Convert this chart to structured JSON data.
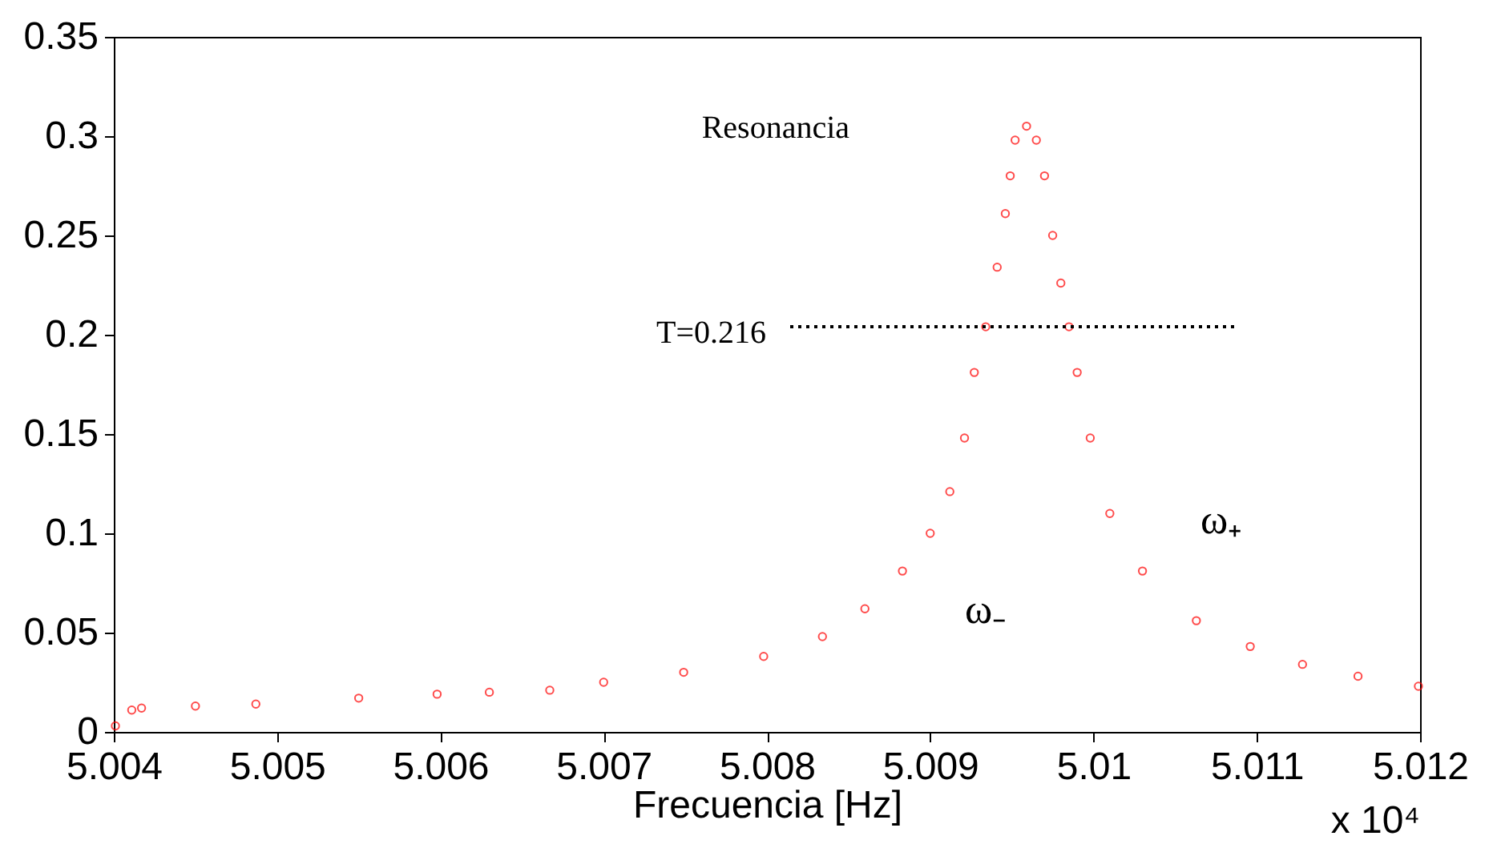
{
  "chart_data": {
    "type": "scatter",
    "xlabel": "Frecuencia [Hz]",
    "xlim": [
      5.004,
      5.012
    ],
    "xticks": [
      5.004,
      5.005,
      5.006,
      5.007,
      5.008,
      5.009,
      5.01,
      5.011,
      5.012
    ],
    "ylim": [
      0,
      0.35
    ],
    "yticks": [
      0,
      0.05,
      0.1,
      0.15,
      0.2,
      0.25,
      0.3,
      0.35
    ],
    "grid": false,
    "marker": "circle",
    "series": [
      {
        "color": "#ff0000",
        "x": [
          5.00401,
          5.00411,
          5.00417,
          5.0045,
          5.00487,
          5.0055,
          5.00598,
          5.0063,
          5.00667,
          5.007,
          5.00749,
          5.00798,
          5.00834,
          5.0086,
          5.00883,
          5.009,
          5.00912,
          5.00921,
          5.00927,
          5.00934,
          5.00941,
          5.00946,
          5.00949,
          5.00952,
          5.00959,
          5.00965,
          5.0097,
          5.00975,
          5.0098,
          5.00985,
          5.0099,
          5.00998,
          5.0101,
          5.0103,
          5.01063,
          5.01096,
          5.01128,
          5.01162,
          5.01199
        ],
        "values": [
          0.003,
          0.011,
          0.012,
          0.013,
          0.014,
          0.017,
          0.019,
          0.02,
          0.021,
          0.025,
          0.03,
          0.038,
          0.048,
          0.062,
          0.081,
          0.1,
          0.121,
          0.148,
          0.181,
          0.204,
          0.234,
          0.261,
          0.28,
          0.298,
          0.305,
          0.298,
          0.28,
          0.25,
          0.226,
          0.204,
          0.181,
          0.148,
          0.11,
          0.081,
          0.056,
          0.043,
          0.034,
          0.028,
          0.023
        ]
      }
    ],
    "ref_lines": [
      {
        "axis": "y",
        "value": 0.204,
        "line_style": "dotted"
      }
    ],
    "annotations": [
      "Resonancia",
      "T=0.216",
      "ω₋",
      "ω₊",
      "x 10⁴"
    ]
  }
}
